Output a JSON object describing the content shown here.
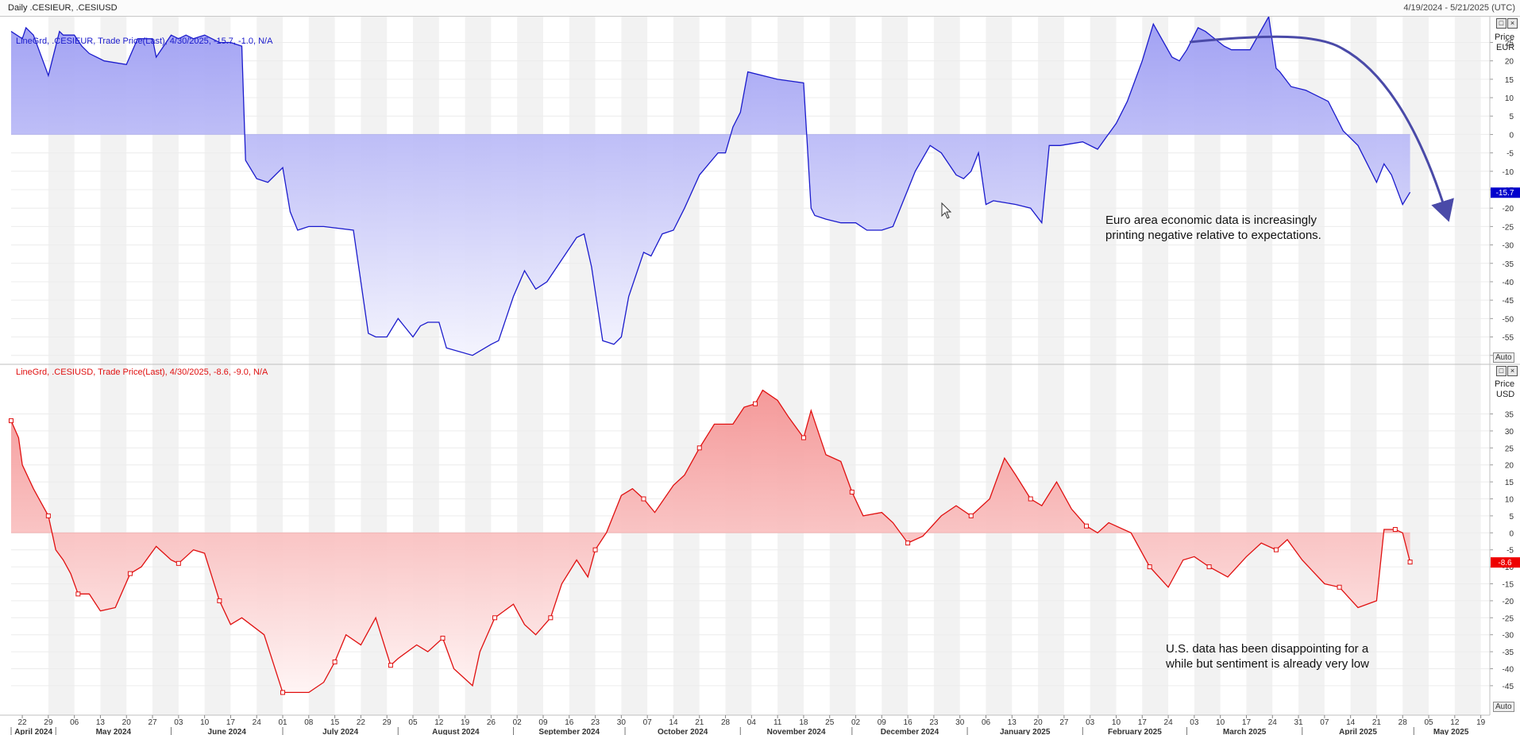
{
  "window": {
    "title": "Daily .CESIEUR, .CESIUSD",
    "date_range": "4/19/2024 - 5/21/2025 (UTC)"
  },
  "icons": [
    "maximize-icon",
    "close-icon",
    "cursor-icon"
  ],
  "panels": {
    "top": {
      "legend": "LineGrd, .CESIEUR, Trade Price(Last), 4/30/2025, -15.7, -1.0, N/A",
      "axis_title": "Price",
      "axis_unit": "EUR",
      "last_value_label": "-15.7",
      "annotation_line1": "Euro area economic data is increasingly",
      "annotation_line2": "printing negative relative to expectations.",
      "auto_label": "Auto"
    },
    "bottom": {
      "legend": "LineGrd, .CESIUSD, Trade Price(Last), 4/30/2025, -8.6, -9.0, N/A",
      "axis_title": "Price",
      "axis_unit": "USD",
      "last_value_label": "-8.6",
      "annotation_line1": "U.S. data has been disappointing for a",
      "annotation_line2": "while but sentiment is already very low",
      "auto_label": "Auto"
    }
  },
  "colors": {
    "eur_line": "#1b1bcc",
    "eur_fill": "#aaaaf5",
    "usd_line": "#e01010",
    "usd_fill": "#f59a9a",
    "arrow": "#4a4aa8",
    "band": "#f2f2f2"
  },
  "chart_data": [
    {
      "type": "area",
      "series": [
        {
          "name": ".CESIEUR",
          "x": [
            "2024-04-19",
            "2024-04-22",
            "2024-04-23",
            "2024-04-25",
            "2024-04-29",
            "2024-05-02",
            "2024-05-03",
            "2024-05-06",
            "2024-05-08",
            "2024-05-10",
            "2024-05-14",
            "2024-05-20",
            "2024-05-23",
            "2024-05-27",
            "2024-05-28",
            "2024-06-01",
            "2024-06-03",
            "2024-06-05",
            "2024-06-07",
            "2024-06-10",
            "2024-06-14",
            "2024-06-17",
            "2024-06-20",
            "2024-06-21",
            "2024-06-24",
            "2024-06-27",
            "2024-07-01",
            "2024-07-03",
            "2024-07-05",
            "2024-07-08",
            "2024-07-12",
            "2024-07-20",
            "2024-07-24",
            "2024-07-26",
            "2024-07-29",
            "2024-08-01",
            "2024-08-05",
            "2024-08-07",
            "2024-08-09",
            "2024-08-12",
            "2024-08-14",
            "2024-08-21",
            "2024-08-26",
            "2024-08-28",
            "2024-09-01",
            "2024-09-04",
            "2024-09-07",
            "2024-09-10",
            "2024-09-14",
            "2024-09-18",
            "2024-09-20",
            "2024-09-22",
            "2024-09-25",
            "2024-09-28",
            "2024-09-30",
            "2024-10-02",
            "2024-10-06",
            "2024-10-08",
            "2024-10-11",
            "2024-10-14",
            "2024-10-17",
            "2024-10-21",
            "2024-10-26",
            "2024-10-28",
            "2024-10-30",
            "2024-11-01",
            "2024-11-03",
            "2024-11-11",
            "2024-11-18",
            "2024-11-20",
            "2024-11-21",
            "2024-11-24",
            "2024-11-28",
            "2024-12-02",
            "2024-12-05",
            "2024-12-09",
            "2024-12-12",
            "2024-12-18",
            "2024-12-22",
            "2024-12-25",
            "2024-12-29",
            "2024-12-31",
            "2025-01-02",
            "2025-01-04",
            "2025-01-06",
            "2025-01-08",
            "2025-01-14",
            "2025-01-18",
            "2025-01-21",
            "2025-01-23",
            "2025-01-26",
            "2025-02-01",
            "2025-02-05",
            "2025-02-10",
            "2025-02-13",
            "2025-02-17",
            "2025-02-20",
            "2025-02-25",
            "2025-02-27",
            "2025-03-01",
            "2025-03-04",
            "2025-03-06",
            "2025-03-11",
            "2025-03-13",
            "2025-03-18",
            "2025-03-23",
            "2025-03-25",
            "2025-03-26",
            "2025-03-29",
            "2025-04-02",
            "2025-04-08",
            "2025-04-12",
            "2025-04-16",
            "2025-04-21",
            "2025-04-23",
            "2025-04-25",
            "2025-04-28",
            "2025-04-30"
          ],
          "y": [
            28,
            26,
            29,
            27,
            16,
            28,
            27,
            27,
            24,
            22,
            20,
            19,
            26,
            26,
            21,
            27,
            26,
            27,
            26,
            27,
            25,
            25,
            24,
            -7,
            -12,
            -13,
            -9,
            -21,
            -26,
            -25,
            -25,
            -26,
            -54,
            -55,
            -55,
            -50,
            -55,
            -52,
            -51,
            -51,
            -58,
            -60,
            -57,
            -56,
            -44,
            -37,
            -42,
            -40,
            -34,
            -28,
            -27,
            -36,
            -56,
            -57,
            -55,
            -44,
            -32,
            -33,
            -27,
            -26,
            -20,
            -11,
            -5,
            -5,
            2,
            6,
            17,
            15,
            14,
            -20,
            -22,
            -23,
            -24,
            -24,
            -26,
            -26,
            -25,
            -10,
            -3,
            -5,
            -11,
            -12,
            -10,
            -5,
            -19,
            -18,
            -19,
            -20,
            -24,
            -3,
            -3,
            -2,
            -4,
            3,
            9,
            20,
            30,
            21,
            20,
            23,
            29,
            28,
            24,
            23,
            23,
            32,
            18,
            17,
            13,
            12,
            9,
            1,
            -3,
            -13,
            -8,
            -11,
            -19,
            -15.7
          ]
        }
      ],
      "ylim": [
        -62,
        32
      ],
      "axis_label": "Price EUR",
      "y_ticks": [
        25,
        20,
        15,
        10,
        5,
        0,
        -5,
        -10,
        -15,
        -20,
        -25,
        -30,
        -35,
        -40,
        -45,
        -50,
        -55,
        -60
      ]
    },
    {
      "type": "area",
      "series": [
        {
          "name": ".CESIUSD",
          "x": [
            "2024-04-19",
            "2024-04-21",
            "2024-04-22",
            "2024-04-25",
            "2024-04-29",
            "2024-05-01",
            "2024-05-03",
            "2024-05-05",
            "2024-05-07",
            "2024-05-10",
            "2024-05-13",
            "2024-05-17",
            "2024-05-21",
            "2024-05-24",
            "2024-05-28",
            "2024-06-01",
            "2024-06-03",
            "2024-06-05",
            "2024-06-07",
            "2024-06-10",
            "2024-06-14",
            "2024-06-17",
            "2024-06-20",
            "2024-06-26",
            "2024-07-01",
            "2024-07-03",
            "2024-07-08",
            "2024-07-12",
            "2024-07-15",
            "2024-07-18",
            "2024-07-22",
            "2024-07-26",
            "2024-07-30",
            "2024-08-01",
            "2024-08-06",
            "2024-08-09",
            "2024-08-13",
            "2024-08-16",
            "2024-08-21",
            "2024-08-23",
            "2024-08-27",
            "2024-09-01",
            "2024-09-04",
            "2024-09-07",
            "2024-09-11",
            "2024-09-14",
            "2024-09-18",
            "2024-09-21",
            "2024-09-23",
            "2024-09-26",
            "2024-09-30",
            "2024-10-03",
            "2024-10-06",
            "2024-10-09",
            "2024-10-14",
            "2024-10-17",
            "2024-10-21",
            "2024-10-25",
            "2024-10-30",
            "2024-11-02",
            "2024-11-05",
            "2024-11-07",
            "2024-11-11",
            "2024-11-14",
            "2024-11-18",
            "2024-11-20",
            "2024-11-24",
            "2024-11-28",
            "2024-12-01",
            "2024-12-04",
            "2024-12-09",
            "2024-12-12",
            "2024-12-16",
            "2024-12-20",
            "2024-12-25",
            "2024-12-29",
            "2025-01-02",
            "2025-01-07",
            "2025-01-11",
            "2025-01-14",
            "2025-01-18",
            "2025-01-21",
            "2025-01-25",
            "2025-01-29",
            "2025-02-02",
            "2025-02-05",
            "2025-02-08",
            "2025-02-14",
            "2025-02-19",
            "2025-02-24",
            "2025-02-28",
            "2025-03-03",
            "2025-03-07",
            "2025-03-12",
            "2025-03-17",
            "2025-03-21",
            "2025-03-25",
            "2025-03-28",
            "2025-04-01",
            "2025-04-07",
            "2025-04-11",
            "2025-04-16",
            "2025-04-21",
            "2025-04-23",
            "2025-04-26",
            "2025-04-28",
            "2025-04-30"
          ],
          "y": [
            33,
            28,
            20,
            13,
            5,
            -5,
            -8,
            -12,
            -18,
            -18,
            -23,
            -22,
            -12,
            -10,
            -4,
            -8,
            -9,
            -7,
            -5,
            -6,
            -20,
            -27,
            -25,
            -30,
            -47,
            -47,
            -47,
            -44,
            -38,
            -30,
            -33,
            -25,
            -39,
            -37,
            -33,
            -35,
            -31,
            -40,
            -45,
            -35,
            -25,
            -21,
            -27,
            -30,
            -25,
            -15,
            -8,
            -13,
            -5,
            0,
            11,
            13,
            10,
            6,
            14,
            17,
            25,
            32,
            32,
            37,
            38,
            42,
            39,
            34,
            28,
            36,
            23,
            21,
            12,
            5,
            6,
            3,
            -3,
            -1,
            5,
            8,
            5,
            10,
            22,
            17,
            10,
            8,
            15,
            7,
            2,
            0,
            3,
            0,
            -10,
            -16,
            -8,
            -7,
            -10,
            -13,
            -7,
            -3,
            -5,
            -2,
            -8,
            -15,
            -16,
            -22,
            -20,
            1,
            1,
            0,
            -8.6
          ]
        }
      ],
      "ylim": [
        -49,
        44
      ],
      "axis_label": "Price USD",
      "y_ticks": [
        35,
        30,
        25,
        20,
        15,
        10,
        5,
        0,
        -5,
        -10,
        -15,
        -20,
        -25,
        -30,
        -35,
        -40,
        -45
      ]
    }
  ],
  "x_axis": {
    "day_ticks": [
      "22",
      "29",
      "06",
      "13",
      "20",
      "27",
      "03",
      "10",
      "17",
      "24",
      "01",
      "08",
      "15",
      "22",
      "29",
      "05",
      "12",
      "19",
      "26",
      "02",
      "09",
      "16",
      "23",
      "30",
      "07",
      "14",
      "21",
      "28",
      "04",
      "11",
      "18",
      "25",
      "02",
      "09",
      "16",
      "23",
      "30",
      "06",
      "13",
      "20",
      "27",
      "03",
      "10",
      "17",
      "24",
      "03",
      "10",
      "17",
      "24",
      "31",
      "07",
      "14",
      "21",
      "28",
      "05",
      "12",
      "19"
    ],
    "months": [
      {
        "label": "April 2024",
        "date": "2024-04-19"
      },
      {
        "label": "May 2024",
        "date": "2024-05-01"
      },
      {
        "label": "June 2024",
        "date": "2024-06-01"
      },
      {
        "label": "July 2024",
        "date": "2024-07-01"
      },
      {
        "label": "August 2024",
        "date": "2024-08-01"
      },
      {
        "label": "September 2024",
        "date": "2024-09-01"
      },
      {
        "label": "October 2024",
        "date": "2024-10-01"
      },
      {
        "label": "November 2024",
        "date": "2024-11-01"
      },
      {
        "label": "December 2024",
        "date": "2024-12-01"
      },
      {
        "label": "January 2025",
        "date": "2025-01-01"
      },
      {
        "label": "February 2025",
        "date": "2025-02-01"
      },
      {
        "label": "March 2025",
        "date": "2025-03-01"
      },
      {
        "label": "April 2025",
        "date": "2025-04-01"
      },
      {
        "label": "May 2025",
        "date": "2025-05-01"
      }
    ]
  }
}
